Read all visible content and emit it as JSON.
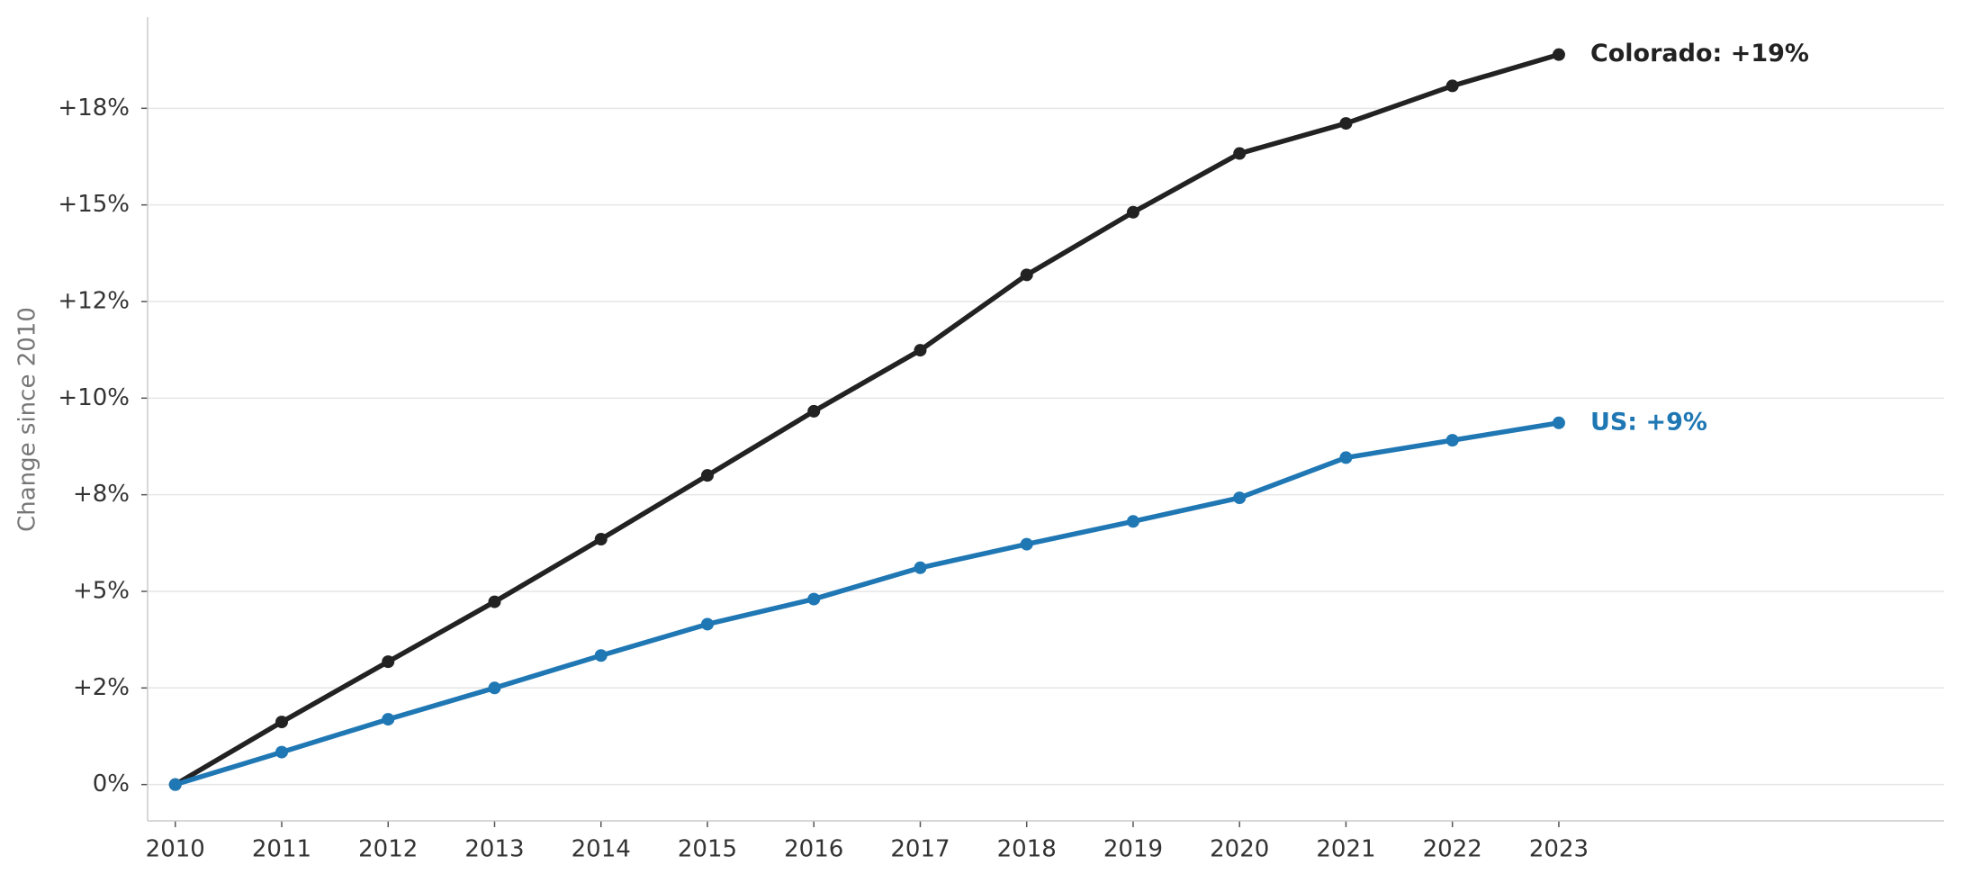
{
  "chart_data": {
    "type": "line",
    "y_label": "Change since 2010",
    "x": [
      2010,
      2011,
      2012,
      2013,
      2014,
      2015,
      2016,
      2017,
      2018,
      2019,
      2020,
      2021,
      2022,
      2023
    ],
    "series": [
      {
        "label": "Colorado: +19%",
        "color": "#222222",
        "values": [
          0,
          1.62,
          3.18,
          4.73,
          6.35,
          8.0,
          9.66,
          11.24,
          13.19,
          14.81,
          16.33,
          17.11,
          18.08,
          18.89
        ]
      },
      {
        "label": "US: +9%",
        "color": "#1f77b4",
        "values": [
          0,
          0.84,
          1.69,
          2.5,
          3.34,
          4.15,
          4.8,
          5.61,
          6.22,
          6.81,
          7.42,
          8.46,
          8.91,
          9.36
        ]
      }
    ],
    "xlim": [
      2009.74,
      2026.62
    ],
    "xticks": [
      2010,
      2011,
      2012,
      2013,
      2014,
      2015,
      2016,
      2017,
      2018,
      2019,
      2020,
      2021,
      2022,
      2023
    ],
    "ylim": [
      -0.94,
      19.86
    ],
    "yticks": [
      {
        "value": 0,
        "label": "0%"
      },
      {
        "value": 2.5,
        "label": "+2%"
      },
      {
        "value": 5,
        "label": "+5%"
      },
      {
        "value": 7.5,
        "label": "+8%"
      },
      {
        "value": 10,
        "label": "+10%"
      },
      {
        "value": 12.5,
        "label": "+12%"
      },
      {
        "value": 15,
        "label": "+15%"
      },
      {
        "value": 17.5,
        "label": "+18%"
      }
    ],
    "grid": true
  }
}
